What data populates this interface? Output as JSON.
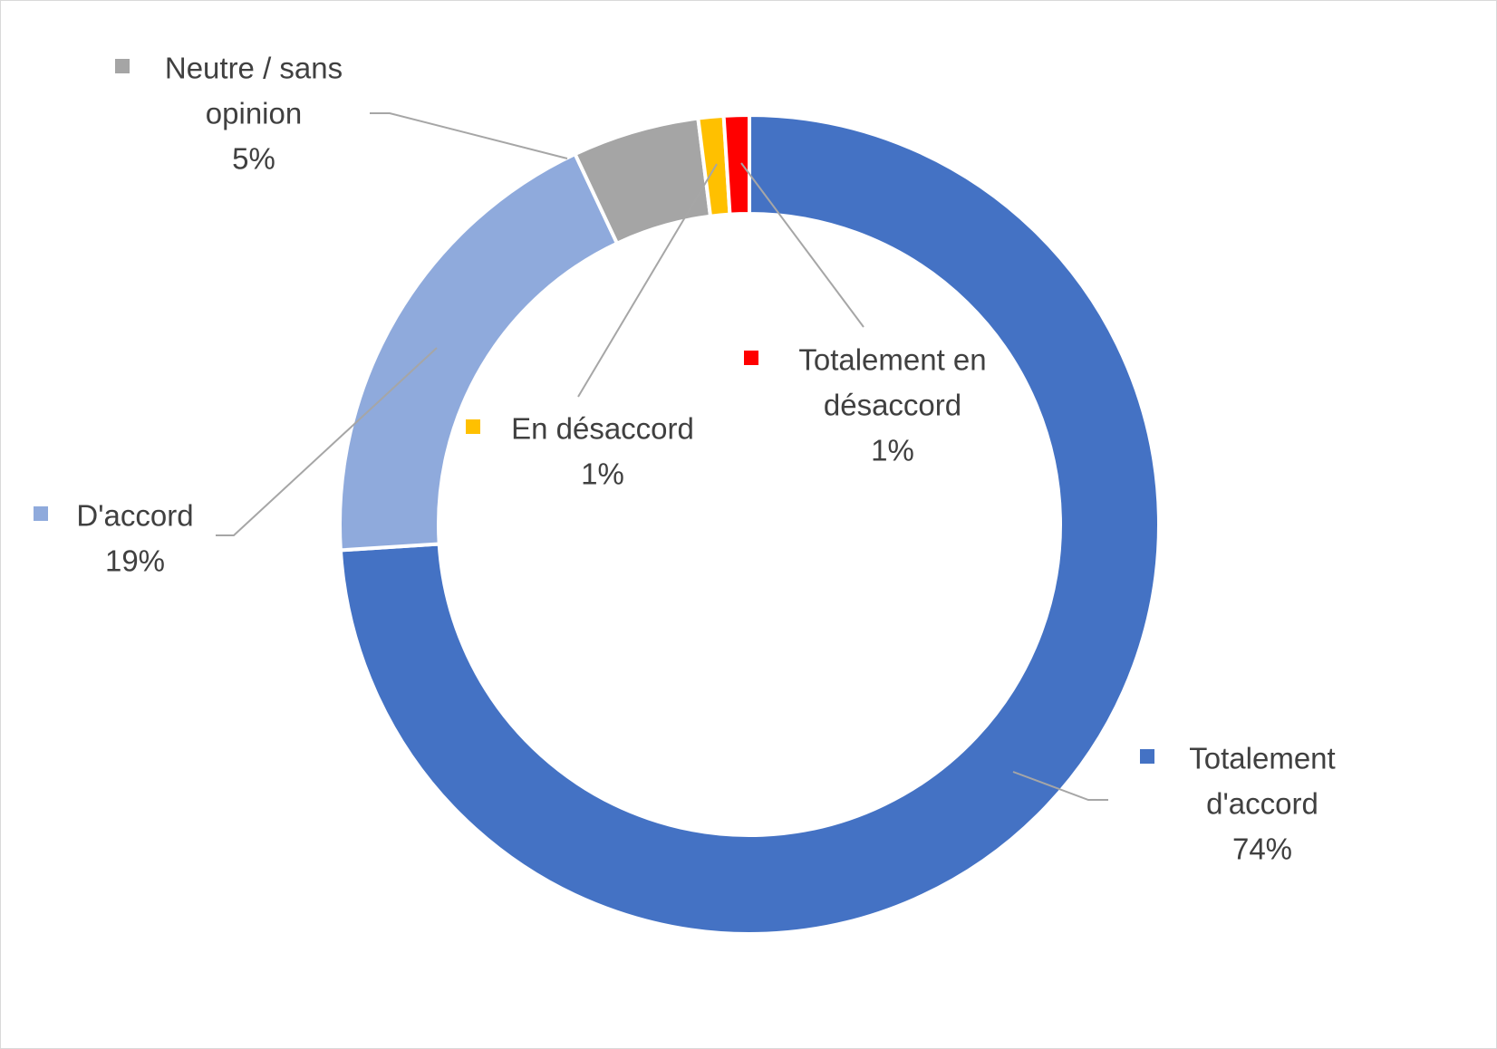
{
  "chart_data": {
    "type": "pie",
    "variant": "donut",
    "title": "",
    "slices": [
      {
        "label_lines": [
          "Totalement",
          "d'accord"
        ],
        "value_label": "74%",
        "value": 74,
        "color": "#4472C4"
      },
      {
        "label_lines": [
          "D'accord"
        ],
        "value_label": "19%",
        "value": 19,
        "color": "#8FAADC"
      },
      {
        "label_lines": [
          "Neutre / sans",
          "opinion"
        ],
        "value_label": "5%",
        "value": 5,
        "color": "#A5A5A5"
      },
      {
        "label_lines": [
          "En désaccord"
        ],
        "value_label": "1%",
        "value": 1,
        "color": "#FFC000"
      },
      {
        "label_lines": [
          "Totalement en",
          "désaccord"
        ],
        "value_label": "1%",
        "value": 1,
        "color": "#FF0000"
      }
    ],
    "leader_line_color": "#A6A6A6",
    "label_color": "#404040"
  }
}
